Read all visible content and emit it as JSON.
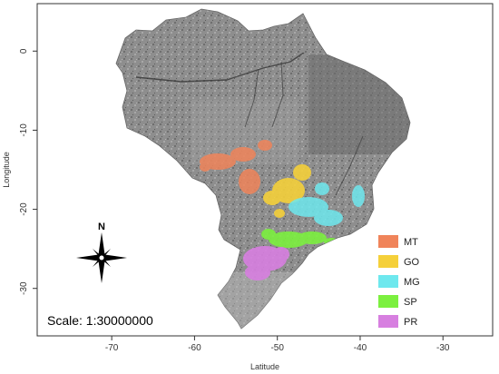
{
  "axes": {
    "xlabel": "Latitude",
    "ylabel": "Longitude",
    "xlim": [
      -79,
      -24
    ],
    "ylim": [
      -36,
      6
    ],
    "xticks": [
      {
        "value": -70,
        "label": "-70"
      },
      {
        "value": -60,
        "label": "-60"
      },
      {
        "value": -50,
        "label": "-50"
      },
      {
        "value": -40,
        "label": "-40"
      },
      {
        "value": -30,
        "label": "-30"
      }
    ],
    "yticks": [
      {
        "value": 0,
        "label": "0"
      },
      {
        "value": -10,
        "label": "-10"
      },
      {
        "value": -20,
        "label": "-20"
      },
      {
        "value": -30,
        "label": "-30"
      }
    ]
  },
  "legend": {
    "placement": "bottom-right",
    "items": [
      {
        "label": "MT",
        "color": "#f0845a"
      },
      {
        "label": "GO",
        "color": "#f5d03a"
      },
      {
        "label": "MG",
        "color": "#6ee8ee"
      },
      {
        "label": "SP",
        "color": "#7cf03f"
      },
      {
        "label": "PR",
        "color": "#d77fe0"
      }
    ]
  },
  "north_arrow": {
    "label": "N"
  },
  "scale": {
    "text": "Scale: 1:30000000"
  },
  "colors": {
    "map_fill": "#8e8e8e",
    "background": "#ffffff"
  },
  "icons": {
    "north": "compass-star-icon"
  }
}
